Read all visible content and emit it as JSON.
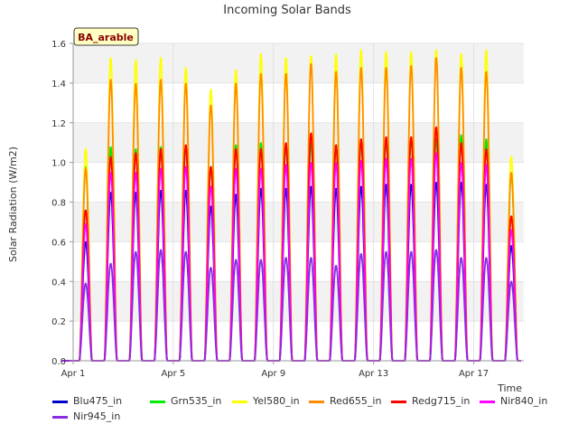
{
  "chart_data": {
    "type": "line",
    "title": "Incoming Solar Bands",
    "xlabel": "Time",
    "ylabel": "Solar Radiation (W/m2)",
    "site_label": "BA_arable",
    "ylim": [
      0,
      1.6
    ],
    "y_ticks": [
      "0.0",
      "0.2",
      "0.4",
      "0.6",
      "0.8",
      "1.0",
      "1.2",
      "1.4",
      "1.6"
    ],
    "xlim": [
      "2024-04-01",
      "2024-04-19"
    ],
    "x_ticks": [
      {
        "date": "2024-04-01",
        "label": "Apr 1"
      },
      {
        "date": "2024-04-05",
        "label": "Apr 5"
      },
      {
        "date": "2024-04-09",
        "label": "Apr 9"
      },
      {
        "date": "2024-04-13",
        "label": "Apr 13"
      },
      {
        "date": "2024-04-17",
        "label": "Apr 17"
      }
    ],
    "grid": true,
    "legend_position": "bottom",
    "days": [
      "2024-04-01",
      "2024-04-02",
      "2024-04-03",
      "2024-04-04",
      "2024-04-05",
      "2024-04-06",
      "2024-04-07",
      "2024-04-08",
      "2024-04-09",
      "2024-04-10",
      "2024-04-11",
      "2024-04-12",
      "2024-04-13",
      "2024-04-14",
      "2024-04-15",
      "2024-04-16",
      "2024-04-17",
      "2024-04-18"
    ],
    "series_note": "daily peak values (W/m2)",
    "series": [
      {
        "name": "Blu475_in",
        "color": "#0000cc",
        "values": [
          0.6,
          0.85,
          0.85,
          0.86,
          0.86,
          0.78,
          0.84,
          0.87,
          0.87,
          0.88,
          0.87,
          0.88,
          0.89,
          0.89,
          0.9,
          0.9,
          0.89,
          0.58
        ]
      },
      {
        "name": "Grn535_in",
        "color": "#00ee00",
        "values": [
          0.98,
          1.08,
          1.07,
          1.08,
          1.08,
          0.98,
          1.09,
          1.1,
          1.09,
          1.1,
          1.09,
          1.11,
          1.12,
          1.12,
          1.12,
          1.14,
          1.12,
          0.95
        ]
      },
      {
        "name": "Yel580_in",
        "color": "#ffff00",
        "values": [
          1.07,
          1.53,
          1.52,
          1.53,
          1.48,
          1.37,
          1.47,
          1.55,
          1.53,
          1.54,
          1.55,
          1.57,
          1.56,
          1.56,
          1.57,
          1.55,
          1.57,
          1.03
        ]
      },
      {
        "name": "Red655_in",
        "color": "#ff8c00",
        "values": [
          0.97,
          1.42,
          1.4,
          1.42,
          1.4,
          1.29,
          1.4,
          1.45,
          1.45,
          1.5,
          1.46,
          1.48,
          1.48,
          1.49,
          1.53,
          1.48,
          1.46,
          0.95
        ]
      },
      {
        "name": "Redg715_in",
        "color": "#ff0000",
        "values": [
          0.76,
          1.03,
          1.05,
          1.07,
          1.09,
          0.98,
          1.07,
          1.07,
          1.1,
          1.15,
          1.09,
          1.12,
          1.13,
          1.13,
          1.18,
          1.1,
          1.07,
          0.73
        ]
      },
      {
        "name": "Nir840_in",
        "color": "#ff00ff",
        "values": [
          0.69,
          0.95,
          0.95,
          0.97,
          0.98,
          0.88,
          0.97,
          0.97,
          0.99,
          1.0,
          1.0,
          1.01,
          1.02,
          1.02,
          1.05,
          1.0,
          0.99,
          0.66
        ]
      },
      {
        "name": "Nir945_in",
        "color": "#8a2be2",
        "values": [
          0.39,
          0.49,
          0.55,
          0.56,
          0.55,
          0.47,
          0.51,
          0.51,
          0.52,
          0.52,
          0.48,
          0.54,
          0.55,
          0.55,
          0.56,
          0.52,
          0.52,
          0.4
        ]
      }
    ]
  }
}
